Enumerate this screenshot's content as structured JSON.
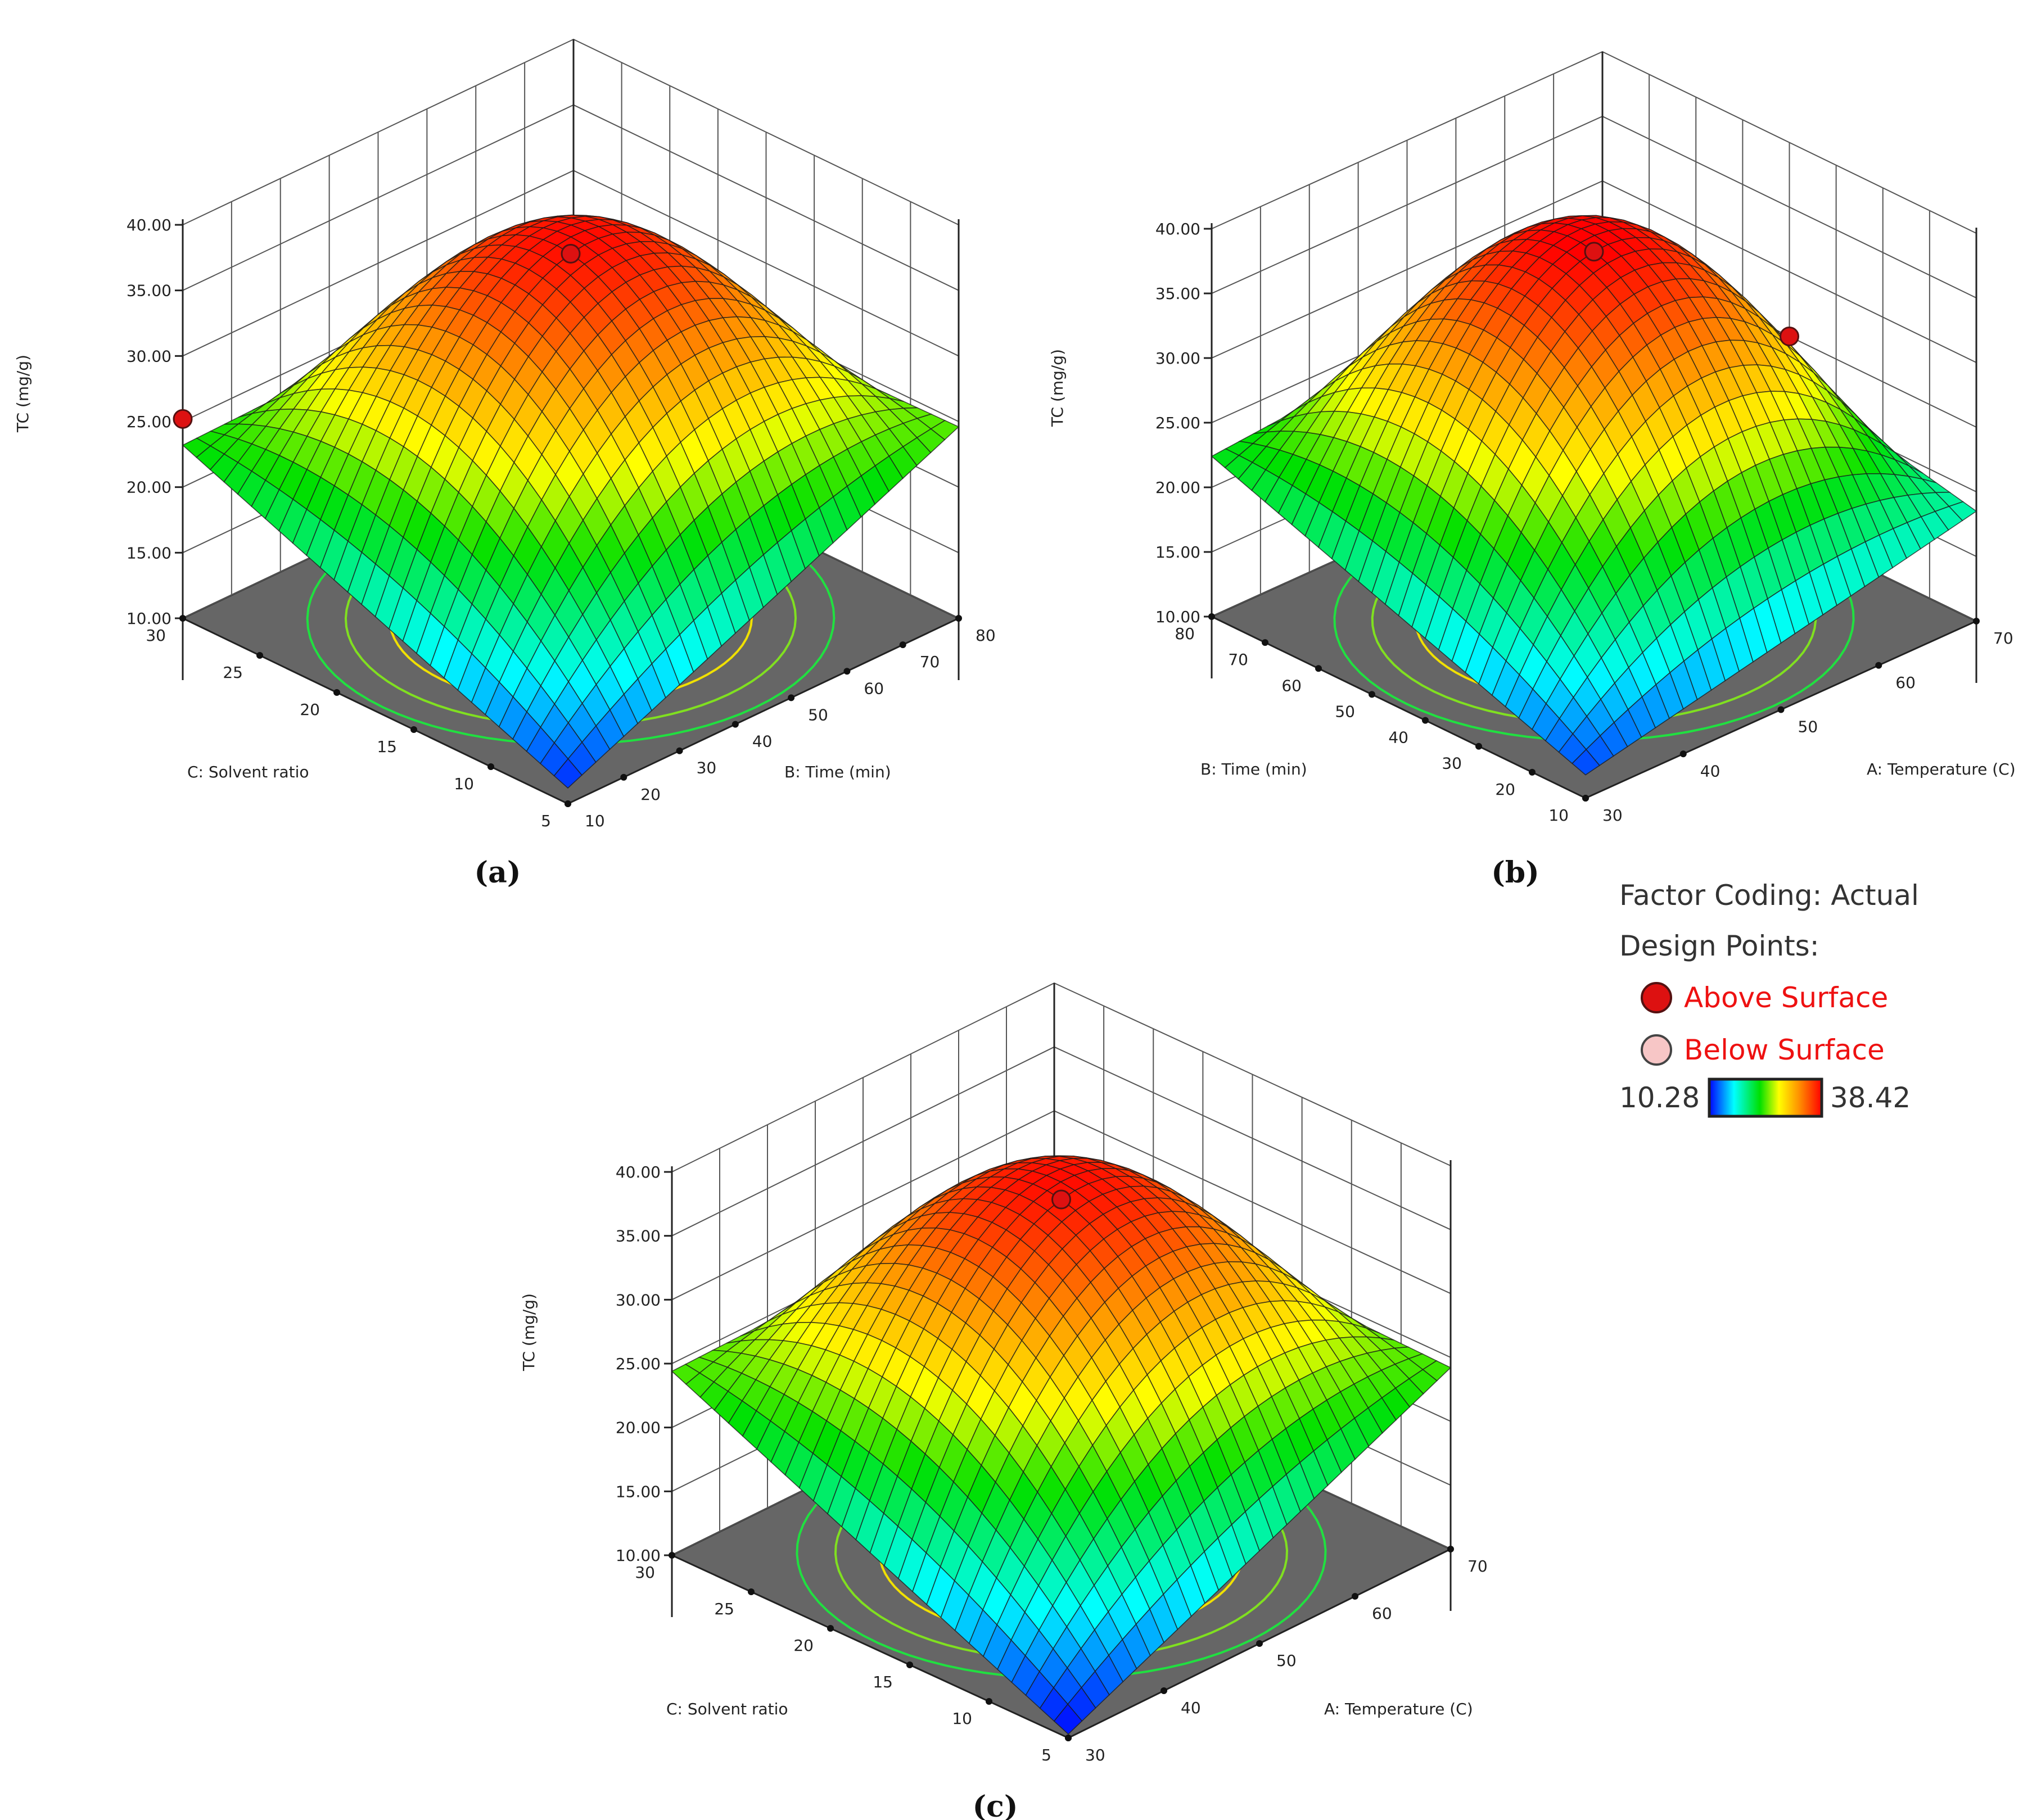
{
  "chart_data": [
    {
      "type": "surface3d",
      "panel_label": "(a)",
      "zlabel": "TC (mg/g)",
      "zticks": [
        "10.00",
        "15.00",
        "20.00",
        "25.00",
        "30.00",
        "35.00",
        "40.00"
      ],
      "zlim": [
        10,
        40
      ],
      "x_axis": {
        "label": "B: Time (min)",
        "ticks": [
          "10",
          "20",
          "30",
          "40",
          "50",
          "60",
          "70",
          "80"
        ],
        "range": [
          10,
          80
        ]
      },
      "y_axis": {
        "label": "C: Solvent ratio",
        "ticks": [
          "5",
          "10",
          "15",
          "20",
          "25",
          "30"
        ],
        "range": [
          5,
          30
        ]
      },
      "surface": {
        "peak": 37.8,
        "front": 11.2,
        "left_corner": 23.2,
        "right_corner": 24.6,
        "back": 24.0
      },
      "design_points": [
        {
          "type": "above",
          "x": 45,
          "y": 17.5,
          "z": 37.8
        },
        {
          "type": "above",
          "x": 10,
          "y": 30,
          "z": 25.2
        }
      ]
    },
    {
      "type": "surface3d",
      "panel_label": "(b)",
      "zlabel": "TC (mg/g)",
      "zticks": [
        "10.00",
        "15.00",
        "20.00",
        "25.00",
        "30.00",
        "35.00",
        "40.00"
      ],
      "zlim": [
        10,
        40
      ],
      "x_axis": {
        "label": "A: Temperature (C)",
        "ticks": [
          "30",
          "40",
          "50",
          "60",
          "70"
        ],
        "range": [
          30,
          70
        ]
      },
      "y_axis": {
        "label": "B: Time (min)",
        "ticks": [
          "10",
          "20",
          "30",
          "40",
          "50",
          "60",
          "70",
          "80"
        ],
        "range": [
          10,
          80
        ]
      },
      "surface": {
        "peak": 38.4,
        "front": 11.8,
        "left_corner": 22.4,
        "right_corner": 18.5,
        "back": 25.0
      },
      "design_points": [
        {
          "type": "above",
          "x": 50,
          "y": 45,
          "z": 38.4
        },
        {
          "type": "above",
          "x": 70,
          "y": 45,
          "z": 25.0
        }
      ]
    },
    {
      "type": "surface3d",
      "panel_label": "(c)",
      "zlabel": "TC (mg/g)",
      "zticks": [
        "10.00",
        "15.00",
        "20.00",
        "25.00",
        "30.00",
        "35.00",
        "40.00"
      ],
      "zlim": [
        10,
        40
      ],
      "x_axis": {
        "label": "A: Temperature (C)",
        "ticks": [
          "30",
          "40",
          "50",
          "60",
          "70"
        ],
        "range": [
          30,
          70
        ]
      },
      "y_axis": {
        "label": "C: Solvent ratio",
        "ticks": [
          "5",
          "10",
          "15",
          "20",
          "25",
          "30"
        ],
        "range": [
          5,
          30
        ]
      },
      "surface": {
        "peak": 37.6,
        "front": 10.3,
        "left_corner": 24.4,
        "right_corner": 24.2,
        "back": 25.0
      },
      "design_points": [
        {
          "type": "above",
          "x": 50,
          "y": 17.5,
          "z": 37.6
        }
      ]
    }
  ],
  "legend": {
    "factor_coding": "Factor Coding: Actual",
    "design_points_title": "Design Points:",
    "above_label": "Above Surface",
    "below_label": "Below Surface",
    "colorbar_min": "10.28",
    "colorbar_max": "38.42",
    "above_color": "#dd1111",
    "below_color": "#f7c6c6",
    "colormap": [
      "#0000ff",
      "#00ffff",
      "#00e000",
      "#ffff00",
      "#ff9000",
      "#ff0000"
    ]
  }
}
